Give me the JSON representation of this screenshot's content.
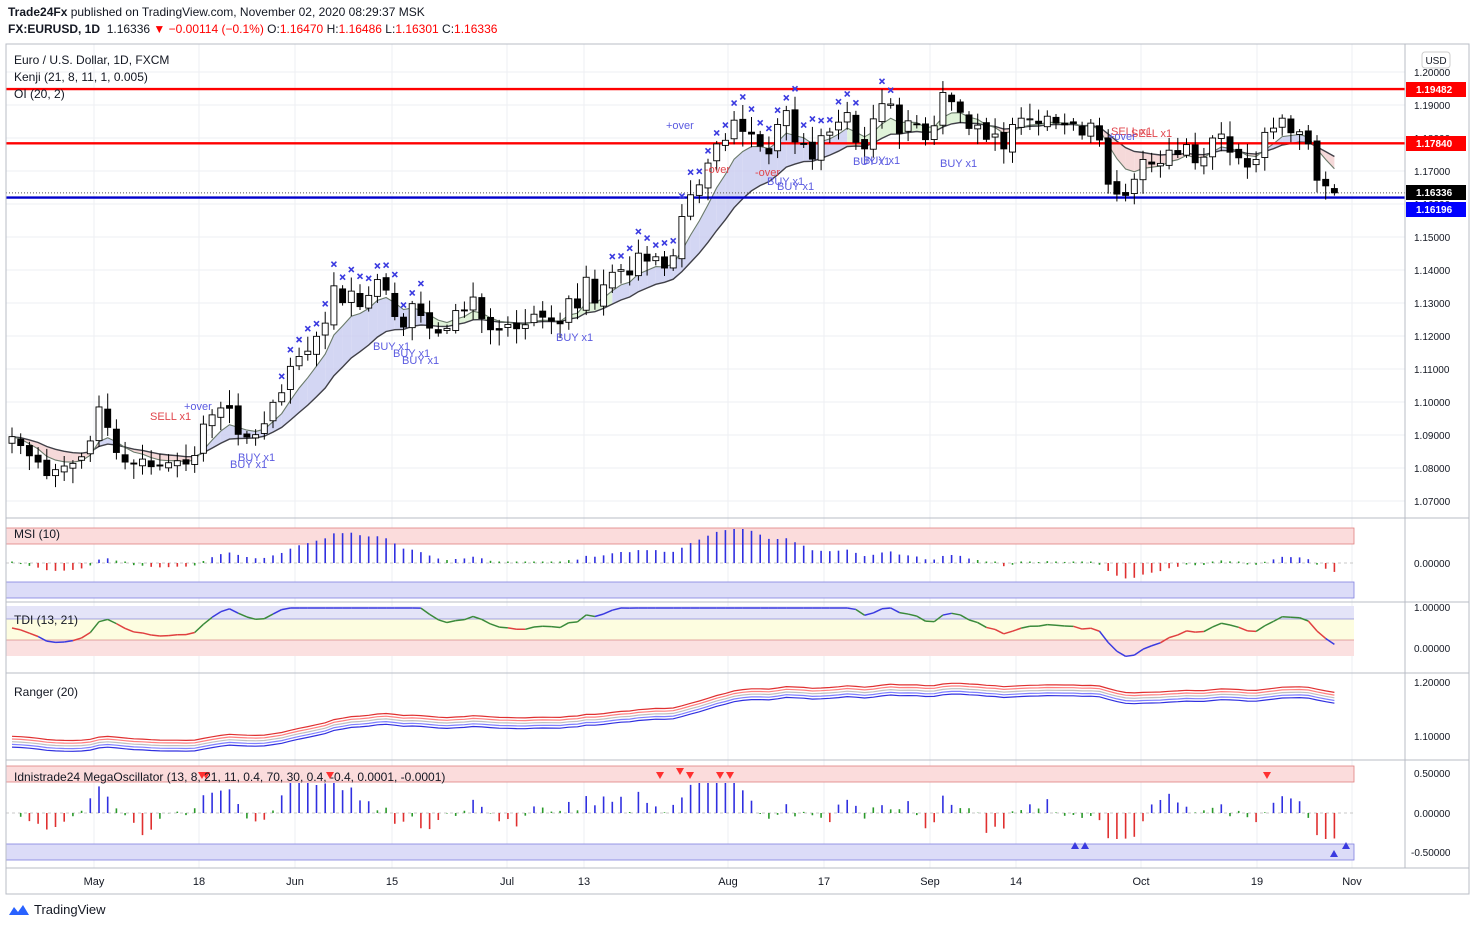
{
  "header": {
    "publisher": "Trade24Fx",
    "published_text": " published on TradingView.com, November 02, 2020 08:29:37 MSK",
    "symbol": "FX:EURUSD, 1D",
    "last": "1.16336",
    "change": "▼ −0.00114 (−0.1%)",
    "o_label": "O:",
    "o": "1.16470",
    "h_label": "H:",
    "h": "1.16486",
    "l_label": "L:",
    "l": "1.16301",
    "c_label": "C:",
    "c": "1.16336"
  },
  "legend": {
    "title": "Euro / U.S. Dollar, 1D, FXCM",
    "kenji": "Kenji (21, 8, 11, 1, 0.005)",
    "oi": "OI (20, 2)"
  },
  "price_scale": {
    "currency": "USD",
    "ticks": [
      "1.20000",
      "1.19000",
      "1.18000",
      "1.17000",
      "1.16000",
      "1.15000",
      "1.14000",
      "1.13000",
      "1.12000",
      "1.11000",
      "1.10000",
      "1.09000",
      "1.08000",
      "1.07000"
    ],
    "badges": [
      {
        "text": "1.19482",
        "color": "#ff0000"
      },
      {
        "text": "1.17840",
        "color": "#ff0000"
      },
      {
        "text": "1.16336",
        "color": "#000000"
      },
      {
        "text": "1.16196",
        "color": "#0000ff"
      }
    ]
  },
  "panes": {
    "msi": {
      "title": "MSI (10)",
      "ticks": [
        "0.00000"
      ]
    },
    "tdi": {
      "title": "TDI (13, 21)",
      "ticks": [
        "1.00000",
        "0.00000"
      ]
    },
    "ranger": {
      "title": "Ranger (20)",
      "ticks": [
        "1.20000",
        "1.10000"
      ]
    },
    "mega": {
      "title": "Idnistrade24 MegaOscillator (13, 8, 21, 11, 0.4, 70, 30, 0.4, -0.4, 0.0001, -0.0001)",
      "ticks": [
        "0.50000",
        "0.00000",
        "-0.50000"
      ]
    }
  },
  "x_axis": [
    "May",
    "18",
    "Jun",
    "15",
    "Jul",
    "13",
    "Aug",
    "17",
    "Sep",
    "14",
    "Oct",
    "19",
    "Nov"
  ],
  "annotations": {
    "buy": "BUY x1",
    "sell": "SELL x1",
    "over_up": "+over",
    "over_down": "-over"
  },
  "footer": {
    "brand": "TradingView"
  },
  "colors": {
    "up_candle": "#ffffff",
    "down_candle": "#000000",
    "level_red": "#ff0000",
    "level_blue": "#0000cc",
    "cloud_bull": "#c8ccf0",
    "cloud_green": "#d8f0d0",
    "cloud_red": "#f2d0d0",
    "accent_blue": "#3a3ae0"
  },
  "chart_data": {
    "type": "candlestick",
    "symbol": "EURUSD",
    "timeframe": "1D",
    "ylim": [
      1.065,
      1.205
    ],
    "levels": [
      1.19482,
      1.1784,
      1.16196
    ],
    "last_close": 1.16336,
    "closes": [
      1.0895,
      1.0868,
      1.0837,
      1.0818,
      1.0777,
      1.0795,
      1.0806,
      1.0814,
      1.0834,
      1.0882,
      1.0985,
      1.0923,
      1.0847,
      1.0818,
      1.0812,
      1.0827,
      1.0804,
      1.0806,
      1.0816,
      1.0822,
      1.0812,
      1.0838,
      1.0933,
      1.0961,
      1.0982,
      1.0981,
      1.0902,
      1.0894,
      1.0901,
      1.0934,
      1.0999,
      1.1028,
      1.1108,
      1.1138,
      1.1154,
      1.1199,
      1.1239,
      1.1352,
      1.1301,
      1.1336,
      1.1289,
      1.1323,
      1.1371,
      1.1339,
      1.1259,
      1.1227,
      1.1298,
      1.1262,
      1.1224,
      1.1209,
      1.1223,
      1.1277,
      1.1278,
      1.1318,
      1.1253,
      1.1219,
      1.1218,
      1.1235,
      1.1222,
      1.1234,
      1.1266,
      1.1257,
      1.1245,
      1.1237,
      1.1313,
      1.1285,
      1.1378,
      1.13,
      1.1355,
      1.1393,
      1.1401,
      1.1385,
      1.1451,
      1.1427,
      1.144,
      1.1406,
      1.1443,
      1.1562,
      1.1628,
      1.1658,
      1.1724,
      1.1782,
      1.1793,
      1.1854,
      1.182,
      1.1812,
      1.1775,
      1.1752,
      1.1841,
      1.1883,
      1.1788,
      1.1783,
      1.1736,
      1.1807,
      1.1818,
      1.1848,
      1.1877,
      1.1787,
      1.1767,
      1.1858,
      1.1904,
      1.1903,
      1.1814,
      1.1852,
      1.1843,
      1.1795,
      1.1837,
      1.1938,
      1.191,
      1.1878,
      1.1829,
      1.1839,
      1.1796,
      1.1812,
      1.1767,
      1.1841,
      1.186,
      1.1858,
      1.1844,
      1.1866,
      1.1845,
      1.184,
      1.1844,
      1.1809,
      1.1845,
      1.1794,
      1.166,
      1.163,
      1.1626,
      1.1675,
      1.1735,
      1.1721,
      1.1723,
      1.1763,
      1.175,
      1.178,
      1.1725,
      1.1742,
      1.18,
      1.1812,
      1.1757,
      1.174,
      1.1712,
      1.1735,
      1.1817,
      1.183,
      1.186,
      1.1816,
      1.1819,
      1.1782,
      1.1672,
      1.1655,
      1.1634
    ]
  }
}
